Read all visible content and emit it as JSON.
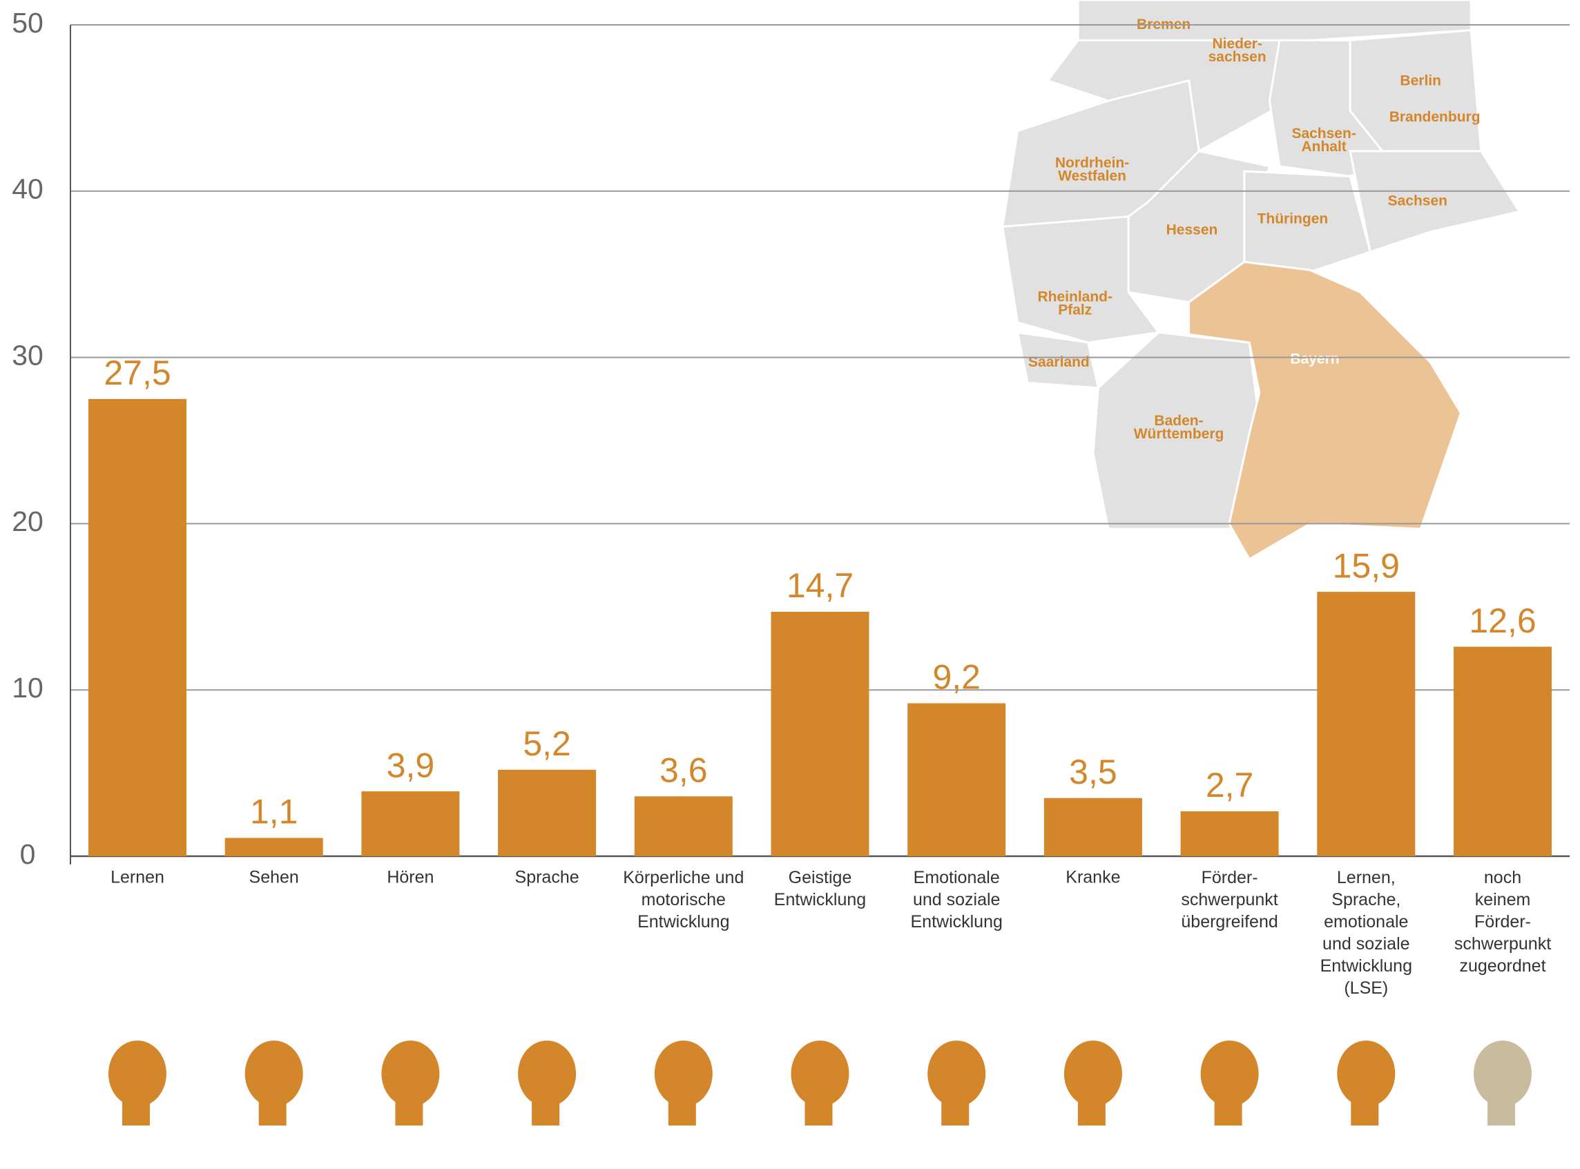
{
  "chart_data": {
    "type": "bar",
    "categories": [
      "Lernen",
      "Sehen",
      "Hören",
      "Sprache",
      "Körperliche und\nmotorische\nEntwicklung",
      "Geistige\nEntwicklung",
      "Emotionale\nund soziale\nEntwicklung",
      "Kranke",
      "Förder-\nschwerpunkt\nübergreifend",
      "Lernen,\nSprache,\nemotionale\nund soziale\nEntwicklung\n(LSE)",
      "noch\nkeinem\nFörder-\nschwerpunkt\nzugeordnet"
    ],
    "values": [
      27.5,
      1.1,
      3.9,
      5.2,
      3.6,
      14.7,
      9.2,
      3.5,
      2.7,
      15.9,
      12.6
    ],
    "value_labels": [
      "27,5",
      "1,1",
      "3,9",
      "5,2",
      "3,6",
      "14,7",
      "9,2",
      "3,5",
      "2,7",
      "15,9",
      "12,6"
    ],
    "color": "#d4862b",
    "ylim": [
      0,
      50
    ],
    "yticks": [
      0,
      10,
      20,
      30,
      40,
      50
    ],
    "grid": true
  },
  "map": {
    "states": [
      "Bremen",
      "Nieder-\nsachsen",
      "Berlin",
      "Brandenburg",
      "Sachsen-\nAnhalt",
      "Nordrhein-\nWestfalen",
      "Sachsen",
      "Hessen",
      "Thüringen",
      "Rheinland-\nPfalz",
      "Saarland",
      "Bayern",
      "Baden-\nWürttemberg"
    ]
  }
}
